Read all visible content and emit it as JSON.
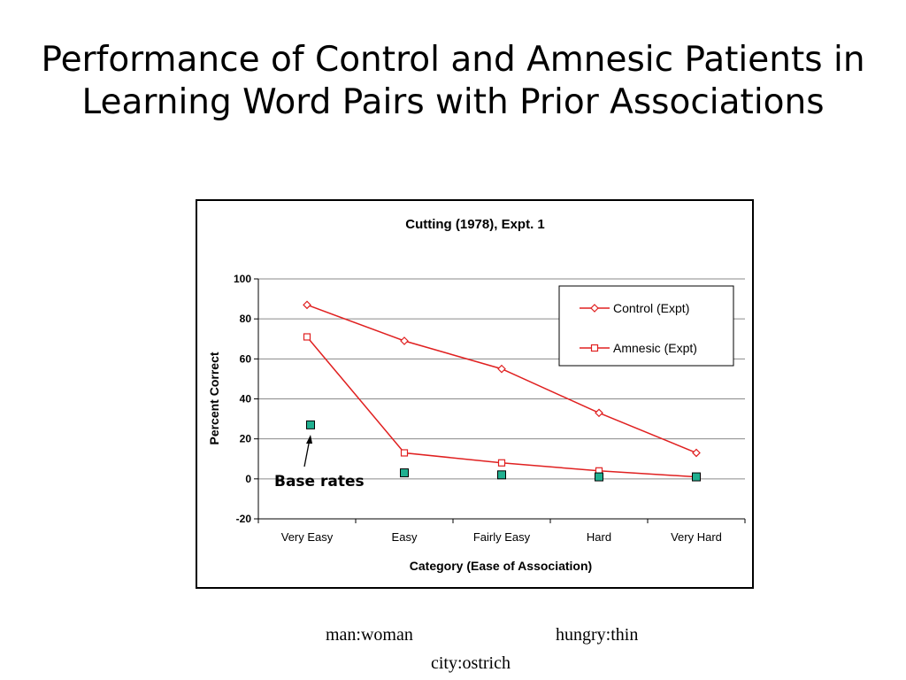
{
  "slide": {
    "title": "Performance of Control and Amnesic Patients in Learning Word Pairs with Prior Associations"
  },
  "examples": {
    "pair_1": "man:woman",
    "pair_2": "hungry:thin",
    "pair_3": "city:ostrich"
  },
  "chart_data": {
    "type": "line",
    "title": "Cutting (1978), Expt. 1",
    "xlabel": "Category (Ease of Association)",
    "ylabel": "Percent Correct",
    "categories": [
      "Very Easy",
      "Easy",
      "Fairly Easy",
      "Hard",
      "Very Hard"
    ],
    "ylim": [
      -20,
      100
    ],
    "yticks": [
      -20,
      0,
      20,
      40,
      60,
      80,
      100
    ],
    "grid": "horizontal",
    "legend_position": "top-right",
    "series": [
      {
        "name": "Control (Expt)",
        "marker": "diamond",
        "color": "#e02020",
        "values": [
          87,
          69,
          55,
          33,
          13
        ]
      },
      {
        "name": "Amnesic (Expt)",
        "marker": "square",
        "color": "#e02020",
        "values": [
          71,
          13,
          8,
          4,
          1
        ]
      }
    ],
    "base_rates": {
      "color": "#20b090",
      "values": [
        27,
        3,
        2,
        1,
        1
      ]
    },
    "annotation": "Base rates"
  }
}
